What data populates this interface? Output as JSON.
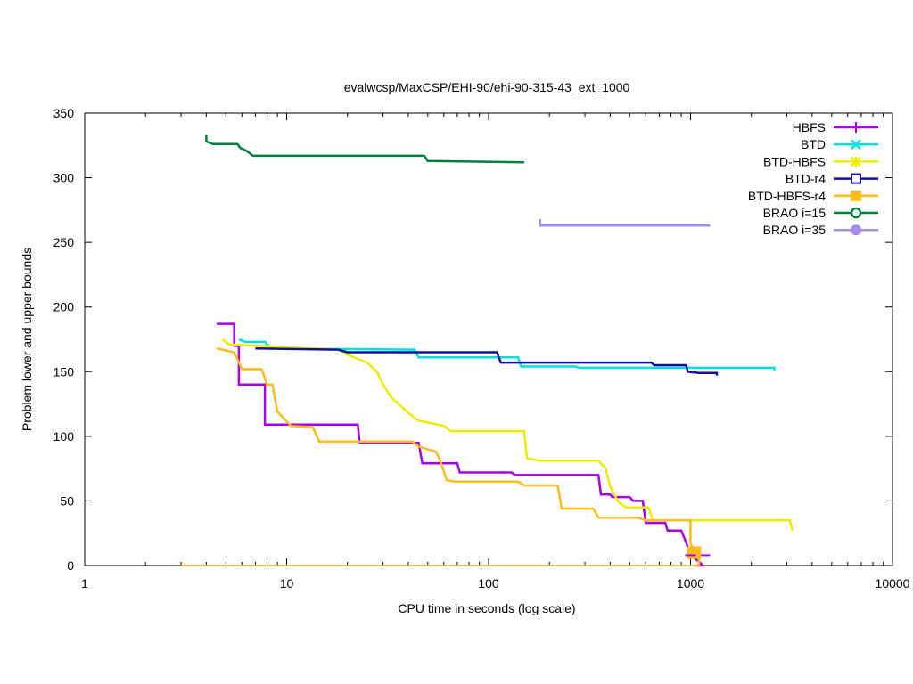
{
  "chart_data": {
    "type": "line",
    "title": "evalwcsp/MaxCSP/EHI-90/ehi-90-315-43_ext_1000",
    "xlabel": "CPU time in seconds (log scale)",
    "ylabel": "Problem lower and upper bounds",
    "xscale": "log",
    "xlim": [
      1,
      10000
    ],
    "ylim": [
      0,
      350
    ],
    "xticks": [
      {
        "v": 1,
        "label": "1"
      },
      {
        "v": 10,
        "label": "10"
      },
      {
        "v": 100,
        "label": "100"
      },
      {
        "v": 1000,
        "label": "1000"
      },
      {
        "v": 10000,
        "label": "10000"
      }
    ],
    "yticks": [
      {
        "v": 0,
        "label": "0"
      },
      {
        "v": 50,
        "label": "50"
      },
      {
        "v": 100,
        "label": "100"
      },
      {
        "v": 150,
        "label": "150"
      },
      {
        "v": 200,
        "label": "200"
      },
      {
        "v": 250,
        "label": "250"
      },
      {
        "v": 300,
        "label": "300"
      },
      {
        "v": 350,
        "label": "350"
      }
    ],
    "legend_position": "top-right",
    "series": [
      {
        "name": "HBFS",
        "color": "#a600e8",
        "marker": "plus",
        "points": [
          [
            4.5,
            187
          ],
          [
            5.5,
            187
          ],
          [
            5.5,
            170
          ],
          [
            5.8,
            170
          ],
          [
            5.8,
            140
          ],
          [
            7.8,
            140
          ],
          [
            7.8,
            109
          ],
          [
            22.5,
            109
          ],
          [
            23,
            95
          ],
          [
            45,
            95
          ],
          [
            47,
            79
          ],
          [
            70,
            79
          ],
          [
            72,
            72
          ],
          [
            130,
            72
          ],
          [
            135,
            70
          ],
          [
            350,
            70
          ],
          [
            360,
            55
          ],
          [
            400,
            55
          ],
          [
            410,
            53
          ],
          [
            500,
            53
          ],
          [
            520,
            50
          ],
          [
            580,
            50
          ],
          [
            600,
            33
          ],
          [
            750,
            33
          ],
          [
            770,
            27
          ],
          [
            900,
            27
          ],
          [
            950,
            18
          ],
          [
            1000,
            8
          ],
          [
            1100,
            3
          ],
          [
            1150,
            0
          ],
          [
            1050,
            0
          ]
        ],
        "upper_points": [
          [
            1000,
            8
          ],
          [
            1250,
            8
          ]
        ]
      },
      {
        "name": "BTD",
        "color": "#00e0e0",
        "marker": "cross",
        "points": [
          [
            5.8,
            175
          ],
          [
            6.2,
            173
          ],
          [
            7.8,
            173
          ],
          [
            8.0,
            171
          ],
          [
            8.5,
            168
          ],
          [
            43,
            167
          ],
          [
            45,
            161
          ],
          [
            140,
            161
          ],
          [
            145,
            154
          ],
          [
            270,
            154
          ],
          [
            280,
            153
          ],
          [
            2600,
            153
          ],
          [
            2600,
            151
          ]
        ]
      },
      {
        "name": "BTD-HBFS",
        "color": "#ecec00",
        "marker": "star",
        "points": [
          [
            4.8,
            175
          ],
          [
            5.2,
            171
          ],
          [
            18,
            167
          ],
          [
            20,
            163
          ],
          [
            25,
            157
          ],
          [
            28,
            150
          ],
          [
            30,
            140
          ],
          [
            33,
            130
          ],
          [
            37,
            123
          ],
          [
            40,
            118
          ],
          [
            45,
            112
          ],
          [
            60,
            108
          ],
          [
            65,
            104
          ],
          [
            150,
            104
          ],
          [
            155,
            83
          ],
          [
            180,
            81
          ],
          [
            350,
            81
          ],
          [
            380,
            75
          ],
          [
            400,
            61
          ],
          [
            440,
            49
          ],
          [
            480,
            45
          ],
          [
            620,
            45
          ],
          [
            650,
            35
          ],
          [
            3100,
            35
          ],
          [
            3200,
            27
          ]
        ]
      },
      {
        "name": "BTD-r4",
        "color": "#1010a0",
        "marker": "square",
        "points": [
          [
            7,
            168
          ],
          [
            18,
            167
          ],
          [
            20,
            165
          ],
          [
            45,
            165
          ],
          [
            110,
            165
          ],
          [
            115,
            157
          ],
          [
            640,
            157
          ],
          [
            660,
            155
          ],
          [
            950,
            155
          ],
          [
            970,
            150
          ],
          [
            1100,
            149
          ],
          [
            1350,
            149
          ],
          [
            1350,
            147
          ]
        ]
      },
      {
        "name": "BTD-HBFS-r4",
        "color": "#ffbb1a",
        "marker": "filled-square",
        "points": [
          [
            4.5,
            168
          ],
          [
            5.5,
            165
          ],
          [
            6.0,
            152
          ],
          [
            7.5,
            152
          ],
          [
            7.6,
            150
          ],
          [
            8.0,
            140
          ],
          [
            8.5,
            140
          ],
          [
            9,
            119
          ],
          [
            10.5,
            108
          ],
          [
            13.5,
            107
          ],
          [
            14.5,
            96
          ],
          [
            42,
            96
          ],
          [
            45,
            92
          ],
          [
            55,
            88
          ],
          [
            58,
            80
          ],
          [
            62,
            66
          ],
          [
            68,
            65
          ],
          [
            140,
            65
          ],
          [
            150,
            62
          ],
          [
            220,
            62
          ],
          [
            230,
            44
          ],
          [
            330,
            44
          ],
          [
            350,
            37
          ],
          [
            550,
            37
          ],
          [
            600,
            35
          ],
          [
            1000,
            35
          ],
          [
            1000,
            17
          ],
          [
            1050,
            10
          ],
          [
            1100,
            10
          ],
          [
            1100,
            0
          ]
        ],
        "lower_points": [
          [
            3,
            0
          ],
          [
            1100,
            0
          ]
        ]
      },
      {
        "name": "BRAO i=15",
        "color": "#007f3f",
        "marker": "circle",
        "points": [
          [
            4,
            333
          ],
          [
            4,
            328
          ],
          [
            4.3,
            326
          ],
          [
            5.7,
            326
          ],
          [
            5.9,
            323
          ],
          [
            6.3,
            321
          ],
          [
            6.8,
            317
          ],
          [
            48,
            317
          ],
          [
            50,
            313
          ],
          [
            150,
            312
          ]
        ]
      },
      {
        "name": "BRAO i=35",
        "color": "#a58cf0",
        "marker": "filled-circle",
        "points": [
          [
            180,
            268
          ],
          [
            180,
            263
          ],
          [
            1250,
            263
          ]
        ]
      }
    ]
  }
}
